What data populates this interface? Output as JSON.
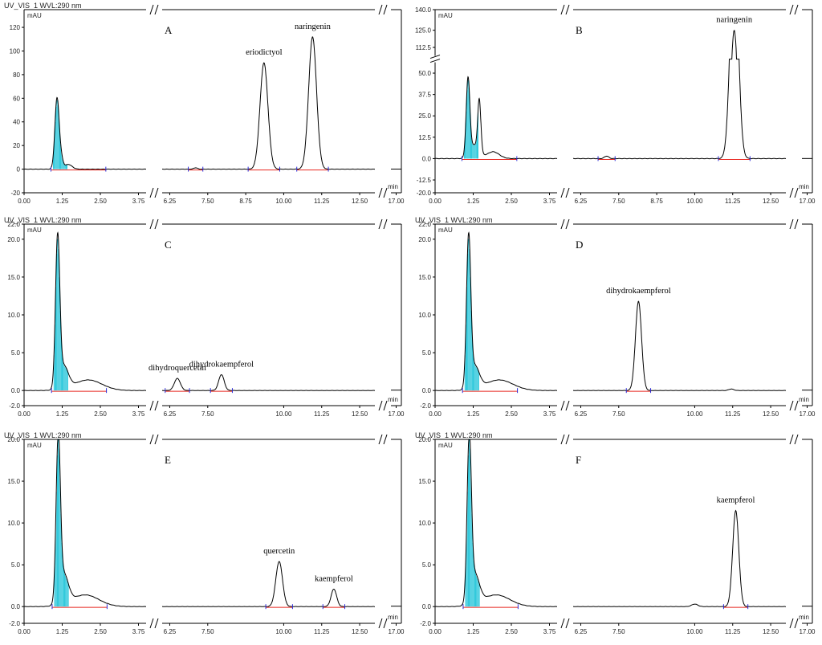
{
  "figure": {
    "background": "#ffffff"
  },
  "colors": {
    "trace": "#000000",
    "baseline": "#e8261f",
    "integration": "#00bcd4",
    "marker": "#2b2bd6",
    "axis": "#000000"
  },
  "chart_data": [
    {
      "type": "line",
      "panel_label": "A",
      "header": "UV_VIS_1 WVL:290 nm",
      "ylabel": "mAU",
      "xlabel": "min",
      "ylim": [
        -20,
        135
      ],
      "yticks": [
        -20,
        0,
        20,
        40,
        60,
        80,
        100,
        120
      ],
      "ytick_labels": [
        "-20",
        "0",
        "20",
        "40",
        "60",
        "80",
        "100",
        "120"
      ],
      "y_break": null,
      "x_segments": [
        [
          0,
          4.0
        ],
        [
          6.0,
          13.0
        ],
        [
          16.9,
          17.1
        ]
      ],
      "xticks": [
        0,
        1.25,
        2.5,
        3.75,
        6.25,
        7.5,
        8.75,
        10.0,
        11.25,
        12.5,
        17.0
      ],
      "xtick_labels": [
        "0.00",
        "1.25",
        "2.50",
        "3.75",
        "6.25",
        "7.50",
        "8.75",
        "10.00",
        "11.25",
        "12.50",
        "17.00"
      ],
      "solvent_peaks": [
        [
          1.08,
          60,
          0.07
        ],
        [
          1.22,
          8,
          0.06
        ],
        [
          1.45,
          4,
          0.12
        ]
      ],
      "peaks": [
        {
          "name": "eriodictyol",
          "rt": 9.35,
          "height": 90,
          "width": 0.13
        },
        {
          "name": "naringenin",
          "rt": 10.95,
          "height": 112,
          "width": 0.13
        },
        {
          "name": "",
          "rt": 7.1,
          "height": 1.2,
          "width": 0.06
        }
      ]
    },
    {
      "type": "line",
      "panel_label": "B",
      "header": "",
      "ylabel": "mAU",
      "xlabel": "min",
      "ylim": [
        -20,
        140
      ],
      "yticks": [
        -20,
        -12.5,
        0,
        12.5,
        25,
        37.5,
        50,
        112.5,
        125,
        140
      ],
      "ytick_labels": [
        "-20.0",
        "-12.5",
        "0.0",
        "12.5",
        "25.0",
        "37.5",
        "50.0",
        "112.5",
        "125.0",
        "140.0"
      ],
      "y_break": [
        55,
        108
      ],
      "x_segments": [
        [
          0,
          4.0
        ],
        [
          6.0,
          13.0
        ],
        [
          16.9,
          17.1
        ]
      ],
      "xticks": [
        0,
        1.25,
        2.5,
        3.75,
        6.25,
        7.5,
        8.75,
        10.0,
        11.25,
        12.5,
        17.0
      ],
      "xtick_labels": [
        "0.00",
        "1.25",
        "2.50",
        "3.75",
        "6.25",
        "7.50",
        "8.75",
        "10.00",
        "11.25",
        "12.50",
        "17.00"
      ],
      "solvent_peaks": [
        [
          1.08,
          45,
          0.06
        ],
        [
          1.45,
          30,
          0.05
        ],
        [
          1.3,
          8,
          0.15
        ],
        [
          1.9,
          4,
          0.2
        ]
      ],
      "peaks": [
        {
          "name": "naringenin",
          "rt": 11.3,
          "height": 125,
          "width": 0.13
        },
        {
          "name": "",
          "rt": 7.1,
          "height": 1.5,
          "width": 0.07
        }
      ]
    },
    {
      "type": "line",
      "panel_label": "C",
      "header": "UV_VIS_1 WVL:290 nm",
      "ylabel": "mAU",
      "xlabel": "min",
      "ylim": [
        -2,
        22
      ],
      "yticks": [
        -2,
        0,
        5,
        10,
        15,
        20,
        22
      ],
      "ytick_labels": [
        "-2.0",
        "0.0",
        "5.0",
        "10.0",
        "15.0",
        "20.0",
        "22.0"
      ],
      "y_break": null,
      "x_segments": [
        [
          0,
          4.0
        ],
        [
          6.0,
          13.0
        ],
        [
          16.9,
          17.1
        ]
      ],
      "xticks": [
        0,
        1.25,
        2.5,
        3.75,
        6.25,
        7.5,
        10.0,
        11.25,
        12.5,
        17.0
      ],
      "xtick_labels": [
        "0.00",
        "1.25",
        "2.50",
        "3.75",
        "6.25",
        "7.50",
        "10.00",
        "11.25",
        "12.50",
        "17.00"
      ],
      "solvent_peaks": [
        [
          1.1,
          19.5,
          0.07
        ],
        [
          1.3,
          3,
          0.15
        ],
        [
          2.1,
          1.4,
          0.45
        ]
      ],
      "peaks": [
        {
          "name": "dihydroquercetin",
          "rt": 6.5,
          "height": 1.6,
          "width": 0.1
        },
        {
          "name": "dihydrokaempferol",
          "rt": 7.95,
          "height": 2.1,
          "width": 0.09
        }
      ]
    },
    {
      "type": "line",
      "panel_label": "D",
      "header": "UV_VIS_1 WVL:290 nm",
      "ylabel": "mAU",
      "xlabel": "min",
      "ylim": [
        -2,
        22
      ],
      "yticks": [
        -2,
        0,
        5,
        10,
        15,
        20,
        22
      ],
      "ytick_labels": [
        "-2.0",
        "0.0",
        "5.0",
        "10.0",
        "15.0",
        "20.0",
        "22.0"
      ],
      "y_break": null,
      "x_segments": [
        [
          0,
          4.0
        ],
        [
          6.0,
          13.0
        ],
        [
          16.9,
          17.1
        ]
      ],
      "xticks": [
        0,
        1.25,
        2.5,
        3.75,
        6.25,
        7.5,
        10.0,
        11.25,
        12.5,
        17.0
      ],
      "xtick_labels": [
        "0.00",
        "1.25",
        "2.50",
        "3.75",
        "6.25",
        "7.50",
        "10.00",
        "11.25",
        "12.50",
        "17.00"
      ],
      "solvent_peaks": [
        [
          1.1,
          19.5,
          0.07
        ],
        [
          1.3,
          3,
          0.15
        ],
        [
          2.1,
          1.4,
          0.45
        ]
      ],
      "peaks": [
        {
          "name": "dihydrokaempferol",
          "rt": 8.15,
          "height": 11.8,
          "width": 0.1
        },
        {
          "name": "",
          "rt": 11.2,
          "height": 0.2,
          "width": 0.08
        }
      ]
    },
    {
      "type": "line",
      "panel_label": "E",
      "header": "UV_VIS_1 WVL:290 nm",
      "ylabel": "mAU",
      "xlabel": "min",
      "ylim": [
        -2,
        20
      ],
      "yticks": [
        -2,
        0,
        5,
        10,
        15,
        20
      ],
      "ytick_labels": [
        "-2.0",
        "0.0",
        "5.0",
        "10.0",
        "15.0",
        "20.0"
      ],
      "y_break": null,
      "x_segments": [
        [
          0,
          4.0
        ],
        [
          6.0,
          13.0
        ],
        [
          16.9,
          17.1
        ]
      ],
      "xticks": [
        0,
        1.25,
        2.5,
        3.75,
        6.25,
        7.5,
        10.0,
        11.25,
        12.5,
        17.0
      ],
      "xtick_labels": [
        "0.00",
        "1.25",
        "2.50",
        "3.75",
        "6.25",
        "7.50",
        "10.00",
        "11.25",
        "12.50",
        "17.00"
      ],
      "solvent_peaks": [
        [
          1.12,
          19,
          0.07
        ],
        [
          1.3,
          3.5,
          0.15
        ],
        [
          2.0,
          1.4,
          0.45
        ]
      ],
      "peaks": [
        {
          "name": "quercetin",
          "rt": 9.85,
          "height": 5.4,
          "width": 0.11
        },
        {
          "name": "kaempferol",
          "rt": 11.65,
          "height": 2.1,
          "width": 0.09
        }
      ]
    },
    {
      "type": "line",
      "panel_label": "F",
      "header": "UV_VIS_1 WVL:290 nm",
      "ylabel": "mAU",
      "xlabel": "min",
      "ylim": [
        -2,
        20
      ],
      "yticks": [
        -2,
        0,
        5,
        10,
        15,
        20
      ],
      "ytick_labels": [
        "-2.0",
        "0.0",
        "5.0",
        "10.0",
        "15.0",
        "20.0"
      ],
      "y_break": null,
      "x_segments": [
        [
          0,
          4.0
        ],
        [
          6.0,
          13.0
        ],
        [
          16.9,
          17.1
        ]
      ],
      "xticks": [
        0,
        1.25,
        2.5,
        3.75,
        6.25,
        7.5,
        10.0,
        11.25,
        12.5,
        17.0
      ],
      "xtick_labels": [
        "0.00",
        "1.25",
        "2.50",
        "3.75",
        "6.25",
        "7.50",
        "10.00",
        "11.25",
        "12.50",
        "17.00"
      ],
      "solvent_peaks": [
        [
          1.12,
          19,
          0.07
        ],
        [
          1.3,
          3.5,
          0.15
        ],
        [
          2.0,
          1.4,
          0.45
        ]
      ],
      "peaks": [
        {
          "name": "kaempferol",
          "rt": 11.35,
          "height": 11.5,
          "width": 0.1
        },
        {
          "name": "",
          "rt": 10.0,
          "height": 0.3,
          "width": 0.1
        }
      ]
    }
  ]
}
